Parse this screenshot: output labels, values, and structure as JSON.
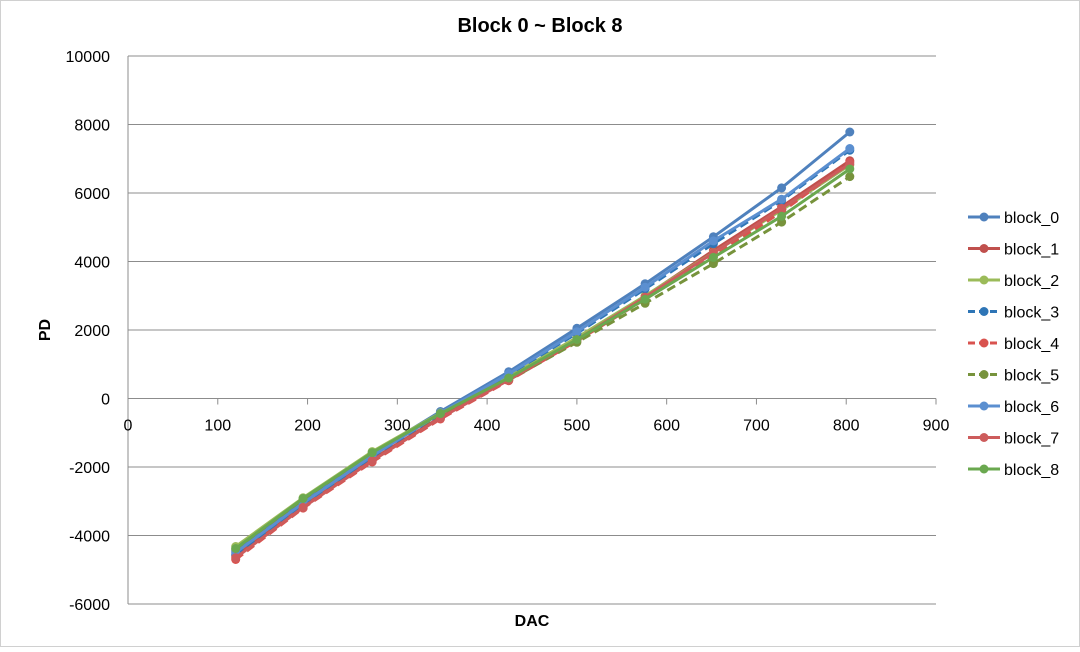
{
  "chart_data": {
    "type": "line",
    "title": "Block 0 ~ Block 8",
    "xlabel": "DAC",
    "ylabel": "PD",
    "xlim": [
      0,
      900
    ],
    "ylim": [
      -6000,
      10000
    ],
    "xticks": [
      0,
      100,
      200,
      300,
      400,
      500,
      600,
      700,
      800,
      900
    ],
    "yticks": [
      -6000,
      -4000,
      -2000,
      0,
      2000,
      4000,
      6000,
      8000,
      10000
    ],
    "xtick_labels": [
      "0",
      "100",
      "200",
      "300",
      "400",
      "500",
      "600",
      "700",
      "800",
      "900"
    ],
    "ytick_labels": [
      "-6000",
      "-4000",
      "-2000",
      "0",
      "2000",
      "4000",
      "6000",
      "8000",
      "10000"
    ],
    "grid": "horizontal",
    "legend_position": "right",
    "x": [
      120,
      195,
      272,
      348,
      424,
      500,
      576,
      652,
      728,
      804
    ],
    "series": [
      {
        "name": "block_0",
        "color": "#4F81BD",
        "dash": "solid",
        "values": [
          -4450,
          -3000,
          -1600,
          -380,
          780,
          2050,
          3350,
          4720,
          6150,
          7780
        ]
      },
      {
        "name": "block_1",
        "color": "#C0504D",
        "dash": "solid",
        "values": [
          -4600,
          -3150,
          -1780,
          -550,
          560,
          1730,
          2980,
          4320,
          5600,
          6940
        ]
      },
      {
        "name": "block_2",
        "color": "#9BBB59",
        "dash": "solid",
        "values": [
          -4320,
          -2900,
          -1550,
          -420,
          640,
          1780,
          3000,
          4260,
          5500,
          6820
        ]
      },
      {
        "name": "block_3",
        "color": "#2E75B6",
        "dash": "dashed",
        "values": [
          -4550,
          -3100,
          -1700,
          -450,
          700,
          1900,
          3200,
          4520,
          5780,
          7250
        ]
      },
      {
        "name": "block_4",
        "color": "#D9534F",
        "dash": "dashed",
        "values": [
          -4700,
          -3200,
          -1850,
          -600,
          520,
          1680,
          2900,
          4150,
          5450,
          6900
        ]
      },
      {
        "name": "block_5",
        "color": "#77933C",
        "dash": "dashed",
        "values": [
          -4400,
          -2950,
          -1600,
          -480,
          540,
          1640,
          2780,
          3940,
          5150,
          6480
        ]
      },
      {
        "name": "block_6",
        "color": "#5B8FD0",
        "dash": "solid",
        "values": [
          -4500,
          -3050,
          -1680,
          -430,
          720,
          1950,
          3250,
          4600,
          5820,
          7300
        ]
      },
      {
        "name": "block_7",
        "color": "#CD5C5C",
        "dash": "solid",
        "values": [
          -4650,
          -3180,
          -1820,
          -570,
          540,
          1720,
          2960,
          4250,
          5550,
          6850
        ]
      },
      {
        "name": "block_8",
        "color": "#6AA84F",
        "dash": "solid",
        "values": [
          -4380,
          -2920,
          -1580,
          -440,
          600,
          1720,
          2900,
          4120,
          5320,
          6700
        ]
      }
    ]
  }
}
